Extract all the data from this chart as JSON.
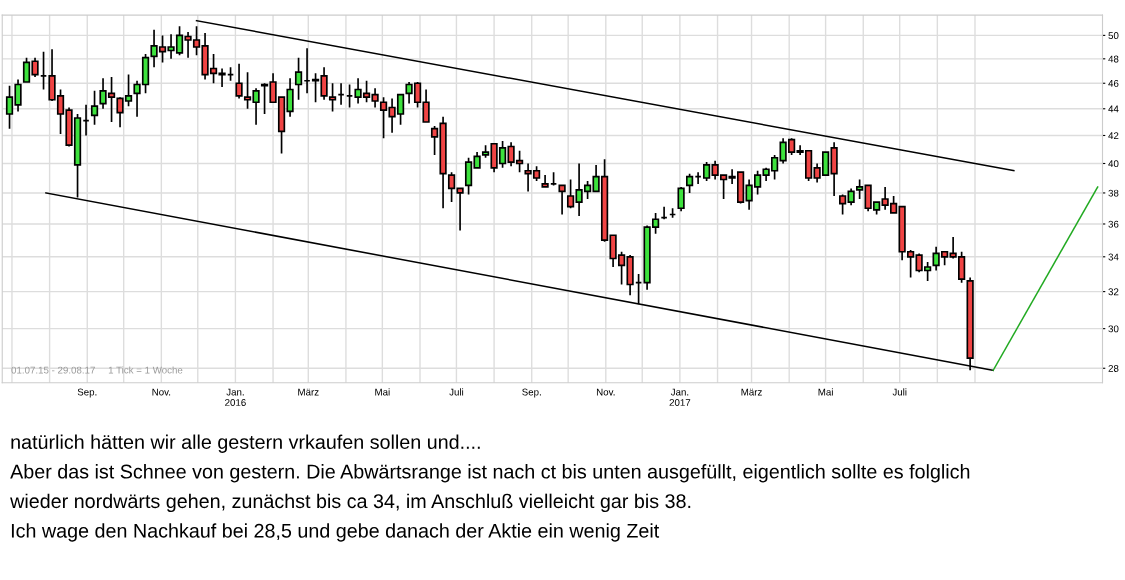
{
  "chart_data": {
    "type": "candlestick",
    "x": [
      "2015-06-29",
      "2015-07-06",
      "2015-07-13",
      "2015-07-20",
      "2015-07-27",
      "2015-08-03",
      "2015-08-10",
      "2015-08-17",
      "2015-08-24",
      "2015-08-31",
      "2015-09-07",
      "2015-09-14",
      "2015-09-21",
      "2015-09-28",
      "2015-10-05",
      "2015-10-12",
      "2015-10-19",
      "2015-10-26",
      "2015-11-02",
      "2015-11-09",
      "2015-11-16",
      "2015-11-23",
      "2015-11-30",
      "2015-12-07",
      "2015-12-14",
      "2015-12-21",
      "2015-12-28",
      "2016-01-04",
      "2016-01-11",
      "2016-01-18",
      "2016-01-25",
      "2016-02-01",
      "2016-02-08",
      "2016-02-15",
      "2016-02-22",
      "2016-02-29",
      "2016-03-07",
      "2016-03-14",
      "2016-03-21",
      "2016-03-28",
      "2016-04-04",
      "2016-04-11",
      "2016-04-18",
      "2016-04-25",
      "2016-05-02",
      "2016-05-09",
      "2016-05-16",
      "2016-05-23",
      "2016-05-30",
      "2016-06-06",
      "2016-06-13",
      "2016-06-20",
      "2016-06-27",
      "2016-07-04",
      "2016-07-11",
      "2016-07-18",
      "2016-07-25",
      "2016-08-01",
      "2016-08-08",
      "2016-08-15",
      "2016-08-22",
      "2016-08-29",
      "2016-09-05",
      "2016-09-12",
      "2016-09-19",
      "2016-09-26",
      "2016-10-03",
      "2016-10-10",
      "2016-10-17",
      "2016-10-24",
      "2016-10-31",
      "2016-11-07",
      "2016-11-14",
      "2016-11-21",
      "2016-11-28",
      "2016-12-05",
      "2016-12-12",
      "2016-12-19",
      "2016-12-26",
      "2017-01-02",
      "2017-01-09",
      "2017-01-16",
      "2017-01-23",
      "2017-01-30",
      "2017-02-06",
      "2017-02-13",
      "2017-02-20",
      "2017-02-27",
      "2017-03-06",
      "2017-03-13",
      "2017-03-20",
      "2017-03-27",
      "2017-04-03",
      "2017-04-10",
      "2017-04-17",
      "2017-04-24",
      "2017-05-01",
      "2017-05-08",
      "2017-05-15",
      "2017-05-22",
      "2017-05-29",
      "2017-06-05",
      "2017-06-12",
      "2017-06-19",
      "2017-06-26",
      "2017-07-03",
      "2017-07-10",
      "2017-07-17",
      "2017-07-24",
      "2017-07-31",
      "2017-08-07",
      "2017-08-14",
      "2017-08-21",
      "2017-08-28"
    ],
    "ohlc": [
      [
        43.6,
        45.8,
        42.5,
        44.9
      ],
      [
        44.3,
        46.3,
        43.8,
        45.9
      ],
      [
        46.1,
        48.1,
        46.1,
        47.7
      ],
      [
        47.8,
        48.1,
        46.5,
        46.7
      ],
      [
        46.6,
        48.6,
        45.5,
        46.6
      ],
      [
        46.6,
        48.8,
        44.6,
        44.7
      ],
      [
        45.0,
        45.5,
        42.1,
        43.6
      ],
      [
        43.9,
        44.1,
        41.2,
        41.3
      ],
      [
        39.9,
        43.6,
        37.7,
        43.3
      ],
      [
        43.1,
        44.3,
        42.0,
        43.1
      ],
      [
        43.5,
        45.4,
        42.8,
        44.2
      ],
      [
        44.4,
        46.4,
        44.0,
        45.4
      ],
      [
        45.2,
        46.5,
        43.0,
        44.9
      ],
      [
        44.8,
        44.9,
        42.6,
        43.7
      ],
      [
        44.6,
        46.7,
        44.2,
        45.0
      ],
      [
        45.2,
        46.2,
        43.4,
        45.9
      ],
      [
        45.9,
        48.4,
        45.2,
        48.1
      ],
      [
        48.2,
        50.5,
        47.3,
        49.1
      ],
      [
        49.0,
        50.0,
        47.7,
        48.6
      ],
      [
        48.7,
        50.1,
        48.0,
        49.0
      ],
      [
        48.5,
        50.8,
        48.3,
        50.0
      ],
      [
        49.9,
        50.3,
        48.1,
        49.6
      ],
      [
        49.6,
        50.8,
        48.3,
        49.0
      ],
      [
        49.1,
        50.2,
        46.3,
        46.7
      ],
      [
        47.2,
        48.4,
        46.0,
        46.8
      ],
      [
        46.7,
        47.2,
        45.7,
        46.8
      ],
      [
        46.7,
        47.3,
        46.2,
        46.7
      ],
      [
        46.0,
        47.6,
        44.8,
        45.0
      ],
      [
        44.9,
        46.9,
        44.0,
        44.7
      ],
      [
        44.5,
        45.6,
        42.8,
        45.4
      ],
      [
        45.8,
        46.0,
        43.6,
        45.9
      ],
      [
        46.1,
        46.8,
        44.5,
        44.5
      ],
      [
        44.9,
        44.9,
        40.7,
        42.3
      ],
      [
        43.8,
        46.4,
        43.4,
        45.5
      ],
      [
        45.9,
        48.1,
        44.7,
        46.9
      ],
      [
        46.2,
        48.9,
        45.2,
        46.2
      ],
      [
        46.3,
        46.8,
        44.5,
        46.2
      ],
      [
        46.6,
        47.3,
        44.7,
        45.0
      ],
      [
        44.9,
        46.0,
        43.8,
        44.7
      ],
      [
        45.1,
        46.0,
        44.3,
        45.1
      ],
      [
        45.0,
        45.9,
        44.1,
        45.0
      ],
      [
        44.9,
        46.4,
        44.4,
        45.5
      ],
      [
        45.2,
        46.2,
        44.5,
        44.9
      ],
      [
        45.1,
        45.6,
        44.1,
        44.6
      ],
      [
        44.5,
        44.9,
        41.8,
        43.9
      ],
      [
        44.1,
        44.8,
        42.2,
        43.4
      ],
      [
        43.6,
        45.1,
        42.8,
        45.1
      ],
      [
        45.2,
        46.1,
        44.4,
        45.9
      ],
      [
        46.0,
        46.1,
        44.1,
        44.5
      ],
      [
        44.5,
        45.5,
        43.0,
        43.0
      ],
      [
        42.5,
        42.7,
        40.6,
        41.9
      ],
      [
        42.9,
        43.4,
        37.0,
        39.3
      ],
      [
        39.2,
        39.4,
        37.4,
        38.3
      ],
      [
        38.3,
        38.3,
        35.6,
        38.0
      ],
      [
        38.5,
        40.4,
        37.9,
        40.1
      ],
      [
        39.7,
        40.8,
        39.7,
        40.5
      ],
      [
        40.6,
        41.3,
        40.4,
        40.8
      ],
      [
        41.4,
        41.4,
        39.4,
        39.7
      ],
      [
        40.0,
        41.6,
        39.7,
        41.1
      ],
      [
        41.2,
        41.5,
        39.8,
        40.1
      ],
      [
        40.2,
        40.9,
        39.4,
        40.0
      ],
      [
        39.5,
        40.0,
        38.1,
        39.3
      ],
      [
        39.5,
        39.8,
        38.8,
        39.0
      ],
      [
        38.6,
        39.2,
        38.4,
        38.4
      ],
      [
        38.6,
        39.4,
        38.5,
        38.6
      ],
      [
        38.5,
        38.5,
        36.6,
        38.1
      ],
      [
        37.8,
        38.9,
        37.0,
        37.1
      ],
      [
        37.4,
        40.0,
        36.5,
        38.2
      ],
      [
        38.1,
        38.8,
        37.6,
        38.5
      ],
      [
        38.1,
        39.9,
        38.1,
        39.1
      ],
      [
        39.1,
        40.3,
        34.9,
        35.0
      ],
      [
        35.3,
        35.3,
        33.4,
        33.9
      ],
      [
        34.1,
        34.3,
        32.4,
        33.5
      ],
      [
        34.0,
        34.1,
        31.8,
        32.4
      ],
      [
        32.5,
        33.0,
        31.3,
        32.5
      ],
      [
        32.5,
        35.9,
        32.1,
        35.8
      ],
      [
        35.8,
        36.7,
        35.4,
        36.3
      ],
      [
        36.4,
        37.1,
        36.3,
        36.4
      ],
      [
        36.6,
        37.0,
        36.4,
        36.6
      ],
      [
        37.0,
        38.4,
        36.8,
        38.3
      ],
      [
        38.5,
        39.3,
        38.0,
        39.1
      ],
      [
        39.1,
        39.4,
        38.6,
        39.1
      ],
      [
        39.0,
        40.1,
        38.8,
        39.9
      ],
      [
        39.9,
        40.2,
        38.9,
        39.2
      ],
      [
        39.2,
        39.2,
        37.6,
        38.9
      ],
      [
        39.1,
        39.6,
        38.6,
        39.0
      ],
      [
        39.4,
        39.4,
        37.3,
        37.4
      ],
      [
        37.5,
        38.9,
        36.9,
        38.5
      ],
      [
        38.4,
        39.5,
        37.9,
        39.2
      ],
      [
        39.2,
        39.7,
        38.8,
        39.6
      ],
      [
        39.5,
        40.6,
        38.9,
        40.4
      ],
      [
        40.2,
        41.8,
        40.0,
        41.5
      ],
      [
        41.7,
        41.8,
        40.6,
        40.8
      ],
      [
        40.9,
        41.3,
        40.6,
        40.8
      ],
      [
        40.9,
        40.9,
        38.8,
        39.0
      ],
      [
        39.7,
        40.0,
        38.7,
        39.0
      ],
      [
        39.2,
        40.8,
        39.2,
        40.8
      ],
      [
        41.1,
        41.5,
        37.8,
        39.3
      ],
      [
        37.8,
        37.9,
        36.6,
        37.3
      ],
      [
        37.4,
        38.3,
        37.2,
        38.1
      ],
      [
        38.2,
        38.9,
        37.6,
        38.4
      ],
      [
        38.5,
        38.5,
        36.8,
        37.0
      ],
      [
        36.9,
        37.4,
        36.6,
        37.4
      ],
      [
        37.6,
        38.4,
        36.9,
        37.2
      ],
      [
        37.3,
        37.8,
        36.7,
        36.7
      ],
      [
        37.1,
        37.1,
        33.8,
        34.3
      ],
      [
        34.3,
        34.4,
        32.8,
        34.0
      ],
      [
        34.1,
        34.2,
        33.1,
        33.2
      ],
      [
        33.2,
        33.7,
        32.6,
        33.4
      ],
      [
        33.5,
        34.6,
        33.2,
        34.2
      ],
      [
        34.3,
        34.3,
        33.5,
        34.0
      ],
      [
        34.2,
        35.2,
        33.9,
        34.0
      ],
      [
        34.0,
        34.3,
        32.5,
        32.7
      ],
      [
        32.6,
        32.8,
        27.9,
        28.5
      ]
    ],
    "colors": [
      "#3de23d",
      "#3de23d",
      "#3de23d",
      "#f04444",
      "#000000",
      "#f04444",
      "#f04444",
      "#f04444",
      "#3de23d",
      "#000000",
      "#3de23d",
      "#3de23d",
      "#f04444",
      "#f04444",
      "#3de23d",
      "#3de23d",
      "#3de23d",
      "#3de23d",
      "#f04444",
      "#3de23d",
      "#3de23d",
      "#f04444",
      "#f04444",
      "#f04444",
      "#f04444",
      "#3de23d",
      "#000000",
      "#f04444",
      "#f04444",
      "#3de23d",
      "#3de23d",
      "#f04444",
      "#f04444",
      "#3de23d",
      "#3de23d",
      "#000000",
      "#f04444",
      "#f04444",
      "#f04444",
      "#000000",
      "#000000",
      "#3de23d",
      "#f04444",
      "#f04444",
      "#f04444",
      "#f04444",
      "#3de23d",
      "#3de23d",
      "#f04444",
      "#f04444",
      "#f04444",
      "#f04444",
      "#f04444",
      "#f04444",
      "#3de23d",
      "#3de23d",
      "#3de23d",
      "#f04444",
      "#3de23d",
      "#f04444",
      "#f04444",
      "#f04444",
      "#f04444",
      "#f04444",
      "#000000",
      "#f04444",
      "#f04444",
      "#3de23d",
      "#3de23d",
      "#3de23d",
      "#f04444",
      "#f04444",
      "#f04444",
      "#f04444",
      "#000000",
      "#3de23d",
      "#3de23d",
      "#000000",
      "#000000",
      "#3de23d",
      "#3de23d",
      "#000000",
      "#3de23d",
      "#f04444",
      "#f04444",
      "#f04444",
      "#f04444",
      "#3de23d",
      "#3de23d",
      "#3de23d",
      "#3de23d",
      "#3de23d",
      "#f04444",
      "#f04444",
      "#f04444",
      "#f04444",
      "#3de23d",
      "#f04444",
      "#f04444",
      "#3de23d",
      "#3de23d",
      "#f04444",
      "#3de23d",
      "#f04444",
      "#f04444",
      "#f04444",
      "#f04444",
      "#f04444",
      "#3de23d",
      "#3de23d",
      "#f04444",
      "#f04444",
      "#f04444",
      "#f04444"
    ],
    "series": [
      {
        "type": "line",
        "color": "#000000",
        "x": [
          "2015-11-30",
          "2017-10-03"
        ],
        "values": [
          51.3,
          39.5
        ]
      },
      {
        "type": "line",
        "color": "#000000",
        "x": [
          "2015-07-29",
          "2017-09-16"
        ],
        "values": [
          38.0,
          27.9
        ]
      },
      {
        "type": "line",
        "color": "#22aa22",
        "x": [
          "2017-09-16",
          "2017-12-11"
        ],
        "values": [
          27.9,
          38.4
        ]
      }
    ],
    "log": true,
    "xlim": [
      "2015-06-23",
      "2017-12-15"
    ],
    "xticks": [
      {
        "value": "2015-07-01",
        "label": null
      },
      {
        "value": "2015-08-01",
        "label": null
      },
      {
        "value": "2015-09-01",
        "label": "Sep."
      },
      {
        "value": "2015-10-01",
        "label": null
      },
      {
        "value": "2015-11-01",
        "label": "Nov."
      },
      {
        "value": "2015-12-01",
        "label": null
      },
      {
        "value": "2016-01-01",
        "label": "Jan.\n2016"
      },
      {
        "value": "2016-02-01",
        "label": null
      },
      {
        "value": "2016-03-01",
        "label": "März"
      },
      {
        "value": "2016-04-01",
        "label": null
      },
      {
        "value": "2016-05-01",
        "label": "Mai"
      },
      {
        "value": "2016-06-01",
        "label": null
      },
      {
        "value": "2016-07-01",
        "label": "Juli"
      },
      {
        "value": "2016-08-01",
        "label": null
      },
      {
        "value": "2016-09-01",
        "label": "Sep."
      },
      {
        "value": "2016-10-01",
        "label": null
      },
      {
        "value": "2016-11-01",
        "label": "Nov."
      },
      {
        "value": "2016-12-01",
        "label": null
      },
      {
        "value": "2017-01-01",
        "label": "Jan.\n2017"
      },
      {
        "value": "2017-02-01",
        "label": null
      },
      {
        "value": "2017-03-01",
        "label": "März"
      },
      {
        "value": "2017-04-01",
        "label": null
      },
      {
        "value": "2017-05-01",
        "label": "Mai"
      },
      {
        "value": "2017-06-01",
        "label": null
      },
      {
        "value": "2017-07-01",
        "label": "Juli"
      },
      {
        "value": "2017-08-01",
        "label": null
      },
      {
        "value": "2017-09-01",
        "label": null
      }
    ],
    "ylim": [
      27.3,
      51.8
    ],
    "yticks": [
      28,
      30,
      32,
      34,
      36,
      38,
      40,
      42,
      44,
      46,
      48,
      50
    ],
    "grid": true,
    "annotations": [
      "01.07.15 - 29.08.17",
      "1 Tick = 1 Woche",
      "natürlich hätten wir alle gestern vrkaufen sollen und....",
      "Aber das ist Schnee von gestern. Die Abwärtsrange ist nach ct bis unten ausgefüllt, eigentlich sollte es folglich",
      "wieder nordwärts gehen, zunächst bis ca 34, im Anschluß vielleicht gar bis 38.",
      "Ich wage den Nachkauf bei 28,5 und gebe danach der Aktie ein wenig Zeit"
    ]
  }
}
